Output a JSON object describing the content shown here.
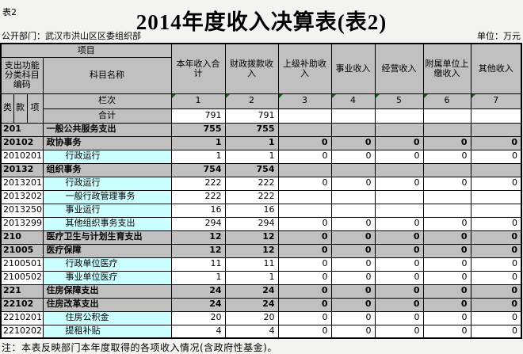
{
  "page": {
    "corner_label": "表2",
    "title": "2014年度收入决算表(表2)",
    "department_label": "公开部门：武汉市洪山区区委组织部",
    "unit_label": "单位：万元",
    "note": "注：本表反映部门本年度取得的各项收入情况(含政府性基金)。"
  },
  "colors": {
    "header_bg": "#c0c0c0",
    "detail_name_bg": "#ccffff",
    "flag_triangle_green": "#066a06"
  },
  "table": {
    "header": {
      "item_label": "项目",
      "code_label": "支出功能分类科目编码",
      "subject_name_label": "科目名称",
      "code_sub_columns": [
        "类",
        "款",
        "项"
      ],
      "row_index_label": "栏次",
      "column_numbers": [
        "1",
        "2",
        "3",
        "4",
        "5",
        "6",
        "7"
      ],
      "value_columns": [
        "本年收入合计",
        "财政拨款收入",
        "上级补助收入",
        "事业收入",
        "经营收入",
        "附属单位上缴收入",
        "其他收入"
      ],
      "total_label": "合计"
    },
    "total_row": {
      "values": [
        "791",
        "791",
        "",
        "",
        "",
        "",
        ""
      ]
    },
    "rows": [
      {
        "code": "201",
        "name": "一般公共服务支出",
        "style": "category",
        "values": [
          "755",
          "755",
          "",
          "",
          "",
          "",
          ""
        ]
      },
      {
        "code": "20102",
        "name": "政协事务",
        "style": "category",
        "values": [
          "1",
          "1",
          "0",
          "0",
          "0",
          "0",
          "0"
        ]
      },
      {
        "code": "2010201",
        "name": "行政运行",
        "style": "detail",
        "values": [
          "1",
          "1",
          "0",
          "0",
          "0",
          "0",
          "0"
        ]
      },
      {
        "code": "20132",
        "name": "组织事务",
        "style": "category",
        "values": [
          "754",
          "754",
          "",
          "",
          "",
          "",
          ""
        ]
      },
      {
        "code": "2013201",
        "name": "行政运行",
        "style": "detail",
        "values": [
          "222",
          "222",
          "0",
          "0",
          "0",
          "0",
          "0"
        ]
      },
      {
        "code": "2013202",
        "name": "一般行政管理事务",
        "style": "detail",
        "values": [
          "222",
          "222",
          "",
          "",
          "",
          "",
          ""
        ]
      },
      {
        "code": "2013250",
        "name": "事业运行",
        "style": "detail",
        "values": [
          "16",
          "16",
          "",
          "",
          "",
          "",
          ""
        ]
      },
      {
        "code": "2013299",
        "name": "其他组织事务支出",
        "style": "detail",
        "values": [
          "294",
          "294",
          "0",
          "0",
          "0",
          "0",
          "0"
        ]
      },
      {
        "code": "210",
        "name": "医疗卫生与计划生育支出",
        "style": "category",
        "values": [
          "12",
          "12",
          "0",
          "0",
          "0",
          "0",
          "0"
        ]
      },
      {
        "code": "21005",
        "name": "医疗保障",
        "style": "category",
        "values": [
          "12",
          "12",
          "0",
          "0",
          "0",
          "0",
          "0"
        ]
      },
      {
        "code": "2100501",
        "name": "行政单位医疗",
        "style": "detail",
        "values": [
          "11",
          "11",
          "0",
          "0",
          "0",
          "0",
          "0"
        ]
      },
      {
        "code": "2100502",
        "name": "事业单位医疗",
        "style": "detail",
        "values": [
          "1",
          "1",
          "0",
          "0",
          "0",
          "0",
          "0"
        ]
      },
      {
        "code": "221",
        "name": "住房保障支出",
        "style": "category",
        "values": [
          "24",
          "24",
          "0",
          "0",
          "0",
          "0",
          "0"
        ]
      },
      {
        "code": "22102",
        "name": "住房改革支出",
        "style": "category",
        "values": [
          "24",
          "24",
          "0",
          "0",
          "0",
          "0",
          "0"
        ]
      },
      {
        "code": "2210201",
        "name": "住房公积金",
        "style": "detail",
        "values": [
          "20",
          "20",
          "0",
          "0",
          "0",
          "0",
          "0"
        ]
      },
      {
        "code": "2210202",
        "name": "提租补贴",
        "style": "detail",
        "values": [
          "4",
          "4",
          "0",
          "0",
          "0",
          "0",
          "0"
        ]
      }
    ]
  }
}
